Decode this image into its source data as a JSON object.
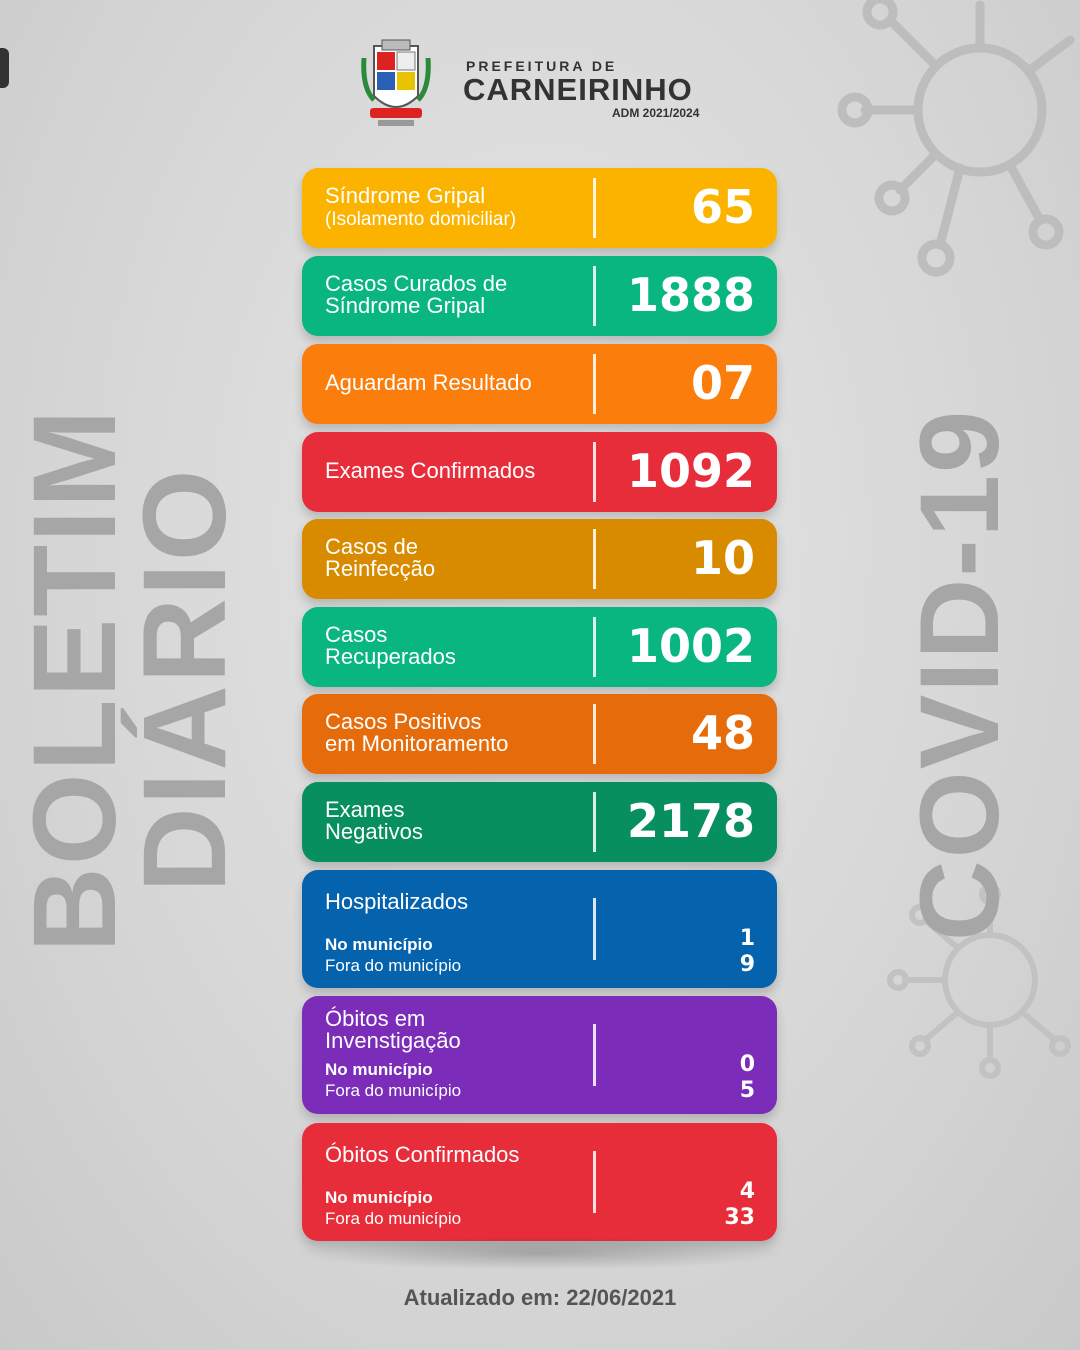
{
  "side_left": "BOLETIM DIÁRIO",
  "side_right": "COVID-19",
  "header": {
    "line1": "PREFEITURA DE",
    "city": "CARNEIRINHO",
    "adm": "ADM 2021/2024"
  },
  "cards": [
    {
      "line1": "Síndrome Gripal",
      "line2": "(Isolamento domiciliar)",
      "value": "65",
      "color": "#fbb300"
    },
    {
      "line1": "Casos Curados de",
      "line2": "Síndrome Gripal",
      "value": "1888",
      "color": "#0ab67f"
    },
    {
      "line1": "Aguardam Resultado",
      "line2": "",
      "value": "07",
      "color": "#fb7d0b"
    },
    {
      "line1": "Exames Confirmados",
      "line2": "",
      "value": "1092",
      "color": "#e82d3a"
    },
    {
      "line1": "Casos de",
      "line2": "Reinfecção",
      "value": "10",
      "color": "#d98b00"
    },
    {
      "line1": "Casos",
      "line2": "Recuperados",
      "value": "1002",
      "color": "#0ab67f"
    },
    {
      "line1": "Casos Positivos",
      "line2": "em Monitoramento",
      "value": "48",
      "color": "#e66c0b"
    },
    {
      "line1": "Exames",
      "line2": "Negativos",
      "value": "2178",
      "color": "#078f5f"
    }
  ],
  "detail_cards": [
    {
      "title1": "Hospitalizados",
      "title2": "",
      "sub1": "No município",
      "sub2": "Fora do município",
      "v1": "1",
      "v2": "9",
      "color": "#0562ac"
    },
    {
      "title1": "Óbitos em",
      "title2": "Invenstigação",
      "sub1": "No município",
      "sub2": "Fora do município",
      "v1": "0",
      "v2": "5",
      "color": "#7b2cb8"
    },
    {
      "title1": "Óbitos Confirmados",
      "title2": "",
      "sub1": "No município",
      "sub2": "Fora do município",
      "v1": "4",
      "v2": "33",
      "color": "#e82d3a"
    }
  ],
  "footer": "Atualizado em:  22/06/2021"
}
